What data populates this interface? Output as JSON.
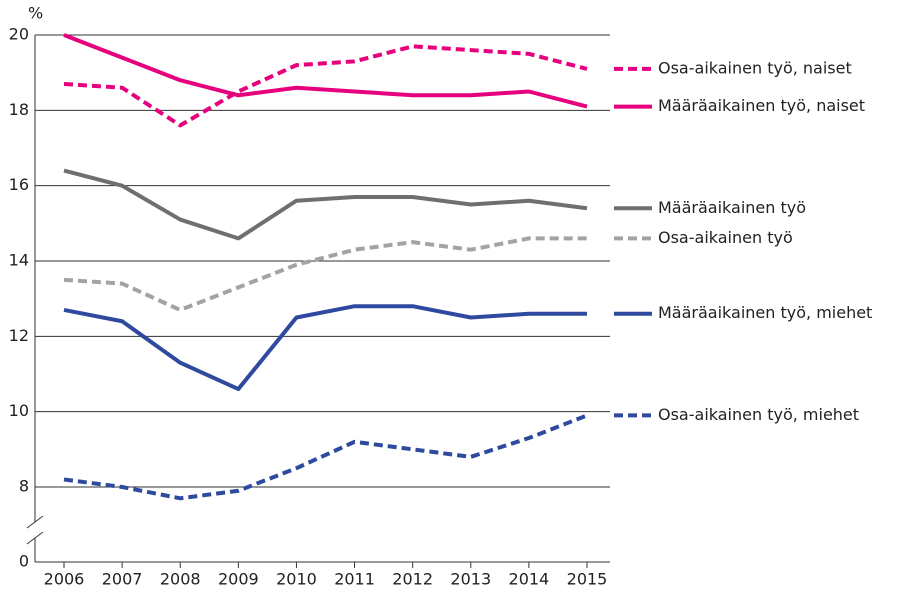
{
  "chart_data": {
    "type": "line",
    "y_axis_label": "%",
    "categories": [
      "2006",
      "2007",
      "2008",
      "2009",
      "2010",
      "2011",
      "2012",
      "2013",
      "2014",
      "2015"
    ],
    "series": [
      {
        "name": "Osa-aikainen työ, naiset",
        "color": "#e6007e",
        "dashed": true,
        "values": [
          18.7,
          18.6,
          17.6,
          18.5,
          19.2,
          19.3,
          19.7,
          19.6,
          19.5,
          19.1
        ]
      },
      {
        "name": "Määräaikainen työ, naiset",
        "color": "#e6007e",
        "dashed": false,
        "values": [
          20.0,
          19.4,
          18.8,
          18.4,
          18.6,
          18.5,
          18.4,
          18.4,
          18.5,
          18.1
        ]
      },
      {
        "name": "Määräaikainen työ",
        "color": "#6f6f6f",
        "dashed": false,
        "values": [
          16.4,
          16.0,
          15.1,
          14.6,
          15.6,
          15.7,
          15.7,
          15.5,
          15.6,
          15.4
        ]
      },
      {
        "name": "Osa-aikainen työ",
        "color": "#a3a3a3",
        "dashed": true,
        "values": [
          13.5,
          13.4,
          12.7,
          13.3,
          13.9,
          14.3,
          14.5,
          14.3,
          14.6,
          14.6
        ]
      },
      {
        "name": "Määräaikainen työ, miehet",
        "color": "#2e4a9e",
        "dashed": false,
        "values": [
          12.7,
          12.4,
          11.3,
          10.6,
          12.5,
          12.8,
          12.8,
          12.5,
          12.6,
          12.6
        ]
      },
      {
        "name": "Osa-aikainen työ, miehet",
        "color": "#2e4a9e",
        "dashed": true,
        "values": [
          8.2,
          8.0,
          7.7,
          7.9,
          8.5,
          9.2,
          9.0,
          8.8,
          9.3,
          9.9
        ]
      }
    ],
    "ylim": [
      0,
      20
    ],
    "yticks": [
      0,
      8,
      10,
      12,
      14,
      16,
      18,
      20
    ],
    "axis_break": true,
    "grid": true
  }
}
